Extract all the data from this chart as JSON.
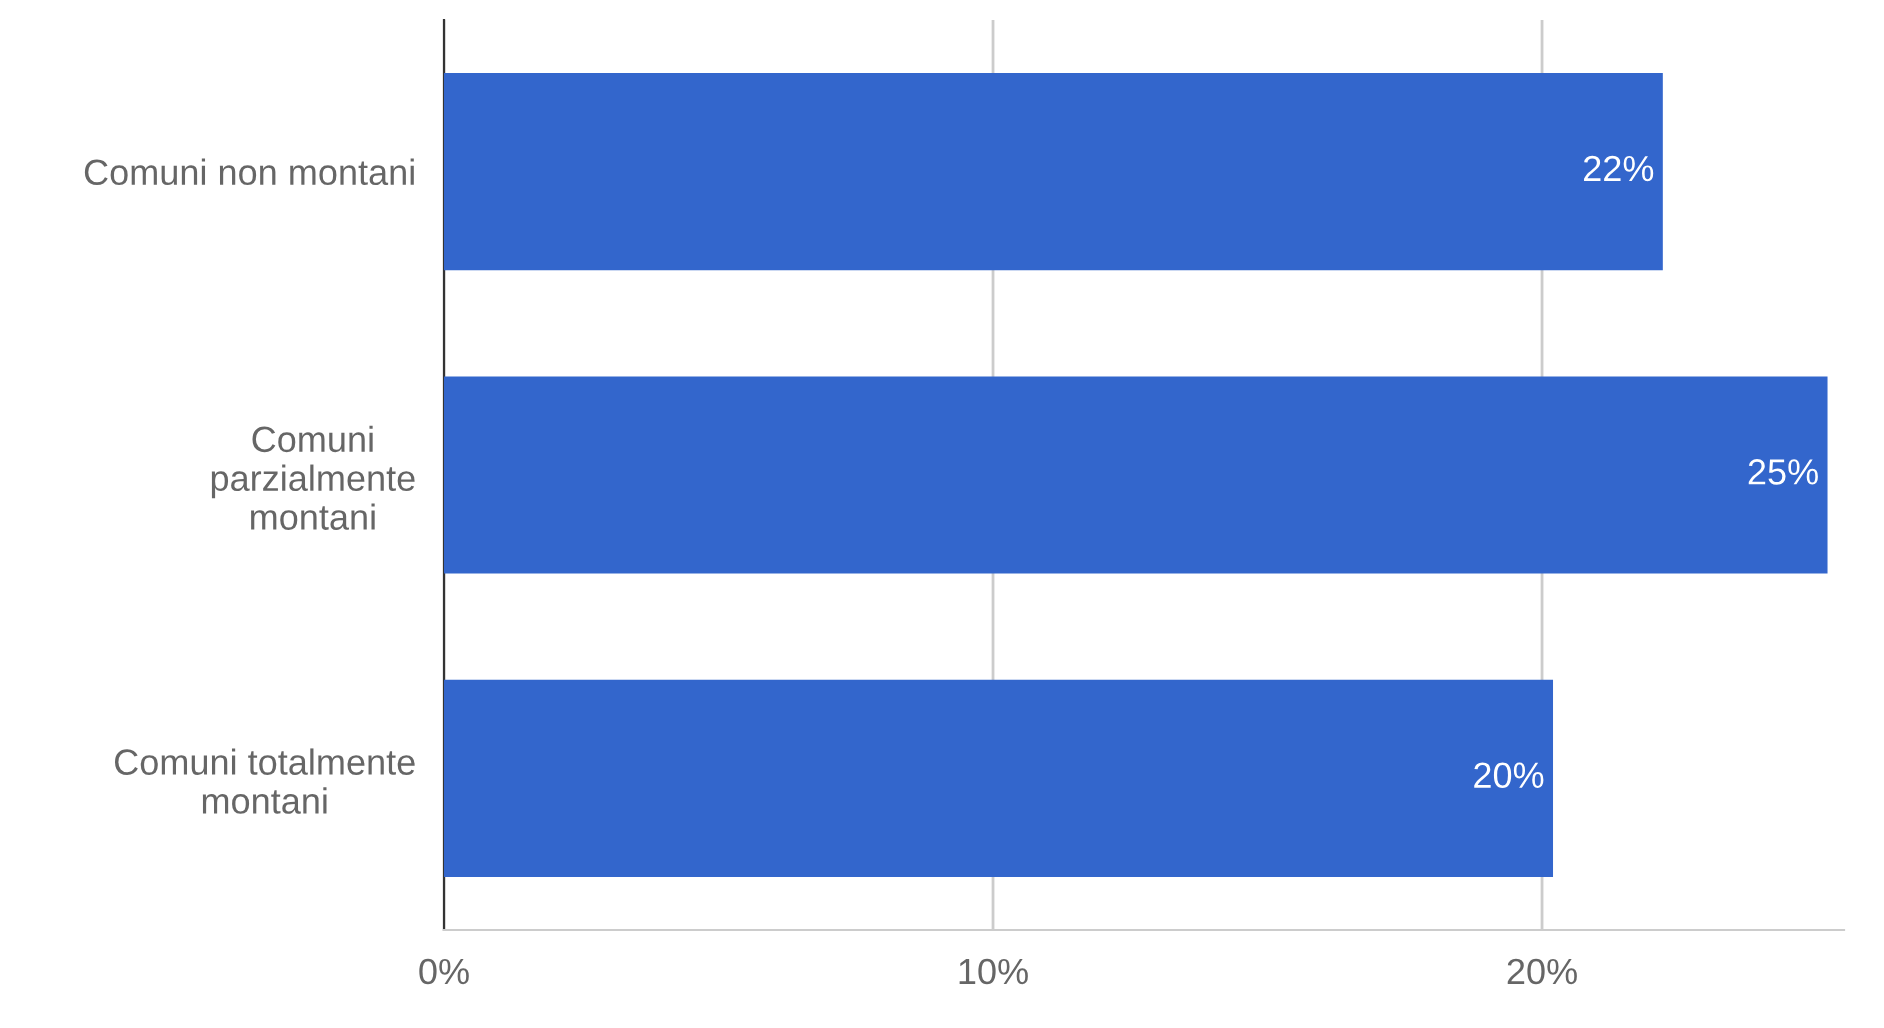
{
  "chart_data": {
    "type": "bar",
    "orientation": "horizontal",
    "categories": [
      "Comuni non montani",
      "Comuni\nparzialmente\nmontani",
      "Comuni totalmente\nmontani"
    ],
    "values": [
      22.2,
      25.2,
      20.2
    ],
    "value_labels": [
      "22%",
      "25%",
      "20%"
    ],
    "color": "#3366cc",
    "xlim": [
      0,
      25.5
    ],
    "xticks": [
      {
        "value": 0,
        "label": "0%"
      },
      {
        "value": 10,
        "label": "10%"
      },
      {
        "value": 20,
        "label": "20%"
      }
    ],
    "grid": "x",
    "legend": false
  }
}
